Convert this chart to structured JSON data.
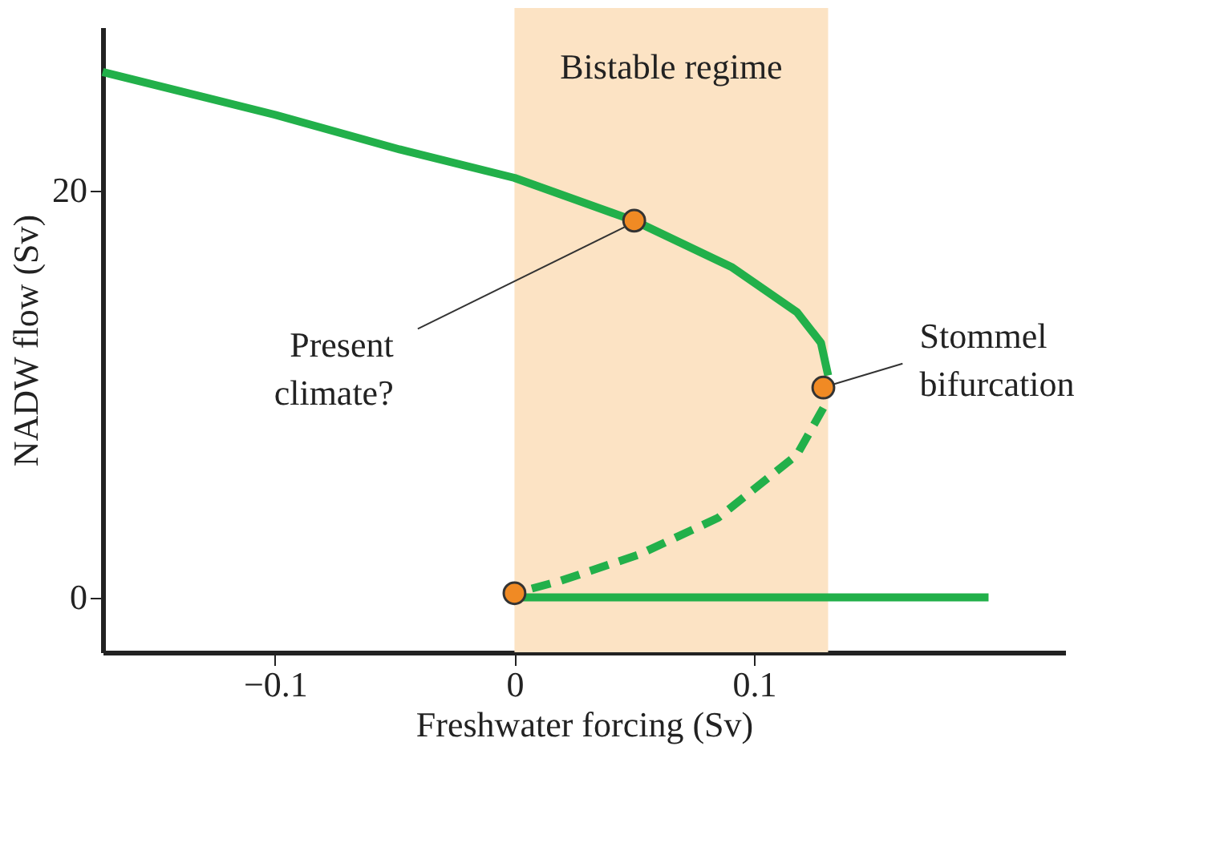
{
  "chart_data": {
    "type": "line",
    "xlabel": "Freshwater forcing (Sv)",
    "ylabel": "NADW flow (Sv)",
    "xlim": [
      -0.172,
      0.23
    ],
    "ylim": [
      -2.7,
      28
    ],
    "xticks": [
      {
        "value": -0.1,
        "label": "−0.1"
      },
      0,
      0.1
    ],
    "yticks": [
      0,
      20
    ],
    "grid": false,
    "series": [
      {
        "color": "#22b04a",
        "line_style": "solid",
        "x": [
          -0.172,
          -0.1,
          -0.048,
          0,
          0.05,
          0.091,
          0.118,
          0.128,
          0.131
        ],
        "values": [
          25.8,
          23.7,
          22.0,
          20.6,
          18.5,
          16.2,
          14.0,
          12.5,
          10.9
        ]
      },
      {
        "color": "#22b04a",
        "line_style": "dashed",
        "x": [
          0.129,
          0.118,
          0.085,
          0.052,
          0.019,
          0
        ],
        "values": [
          9.3,
          7.0,
          3.9,
          2.1,
          0.8,
          0.2
        ]
      },
      {
        "color": "#22b04a",
        "line_style": "solid",
        "x": [
          0,
          0.198
        ],
        "values": [
          0,
          0
        ]
      },
      {
        "type": "scatter",
        "color": "#f08a24",
        "marker": "circle",
        "x": [
          0.05,
          0.129,
          0
        ],
        "values": [
          18.5,
          10.3,
          0.2
        ]
      }
    ],
    "bands": [
      {
        "axis": "x",
        "from": 0,
        "to": 0.131,
        "label": "Bistable regime",
        "color": "#fce3c4"
      }
    ],
    "annotations": [
      {
        "text": "Present\nclimate?",
        "x": 0.05,
        "y": 18.5
      },
      {
        "text": "Stommel\nbifurcation",
        "x": 0.129,
        "y": 10.3
      }
    ]
  }
}
